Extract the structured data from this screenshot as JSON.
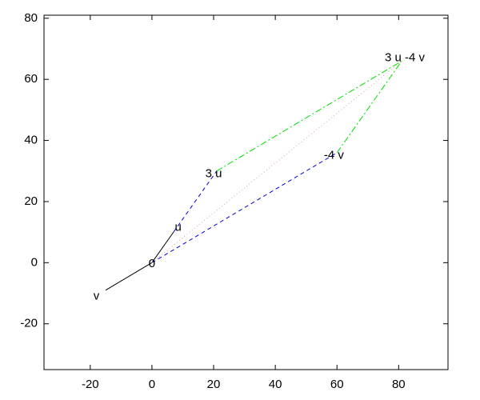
{
  "chart_data": {
    "type": "vector",
    "xlim": [
      -35,
      96
    ],
    "ylim": [
      -35,
      81
    ],
    "xticks": [
      -20,
      0,
      20,
      40,
      60,
      80
    ],
    "yticks": [
      -20,
      0,
      20,
      40,
      60,
      80
    ],
    "series": [
      {
        "color": "#000000",
        "dash": "solid",
        "x": [
          0,
          7
        ],
        "values": [
          0,
          10
        ]
      },
      {
        "color": "#000000",
        "dash": "solid",
        "x": [
          0,
          -15
        ],
        "values": [
          0,
          -9
        ]
      },
      {
        "color": "#0000e0",
        "dash": "dashed",
        "x": [
          7,
          21
        ],
        "values": [
          10,
          30
        ]
      },
      {
        "color": "#0000e0",
        "dash": "dashed",
        "x": [
          0,
          60
        ],
        "values": [
          0,
          36
        ]
      },
      {
        "color": "#00e000",
        "dash": "dashdot",
        "x": [
          21,
          81
        ],
        "values": [
          30,
          66
        ]
      },
      {
        "color": "#00e000",
        "dash": "dashdot",
        "x": [
          60,
          81
        ],
        "values": [
          36,
          66
        ]
      },
      {
        "color": "#e0a0a0",
        "dash": "dotted",
        "x": [
          0,
          81
        ],
        "values": [
          0,
          66
        ]
      }
    ],
    "annotations": [
      {
        "text": "0",
        "x": 0,
        "y": -0.5
      },
      {
        "text": "u",
        "x": 8.5,
        "y": 11.5
      },
      {
        "text": "3 u",
        "x": 20,
        "y": 29
      },
      {
        "text": "-4 v",
        "x": 59,
        "y": 35
      },
      {
        "text": "3 u -4 v",
        "x": 82,
        "y": 67
      },
      {
        "text": "v",
        "x": -18,
        "y": -11
      }
    ]
  }
}
